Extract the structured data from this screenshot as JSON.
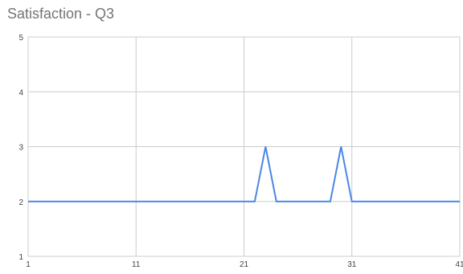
{
  "chart_data": {
    "type": "line",
    "title": "Satisfaction - Q3",
    "xlabel": "",
    "ylabel": "",
    "x_ticks": [
      "1",
      "11",
      "21",
      "31",
      "41"
    ],
    "y_ticks": [
      "1",
      "2",
      "3",
      "4",
      "5"
    ],
    "xlim": [
      1,
      41
    ],
    "ylim": [
      1,
      5
    ],
    "grid": true,
    "legend": "none",
    "series": [
      {
        "color": "#4a86e8",
        "points": [
          [
            1,
            2
          ],
          [
            22,
            2
          ],
          [
            23,
            3
          ],
          [
            24,
            2
          ],
          [
            29,
            2
          ],
          [
            30,
            3
          ],
          [
            31,
            2
          ],
          [
            41,
            2
          ]
        ]
      }
    ]
  }
}
